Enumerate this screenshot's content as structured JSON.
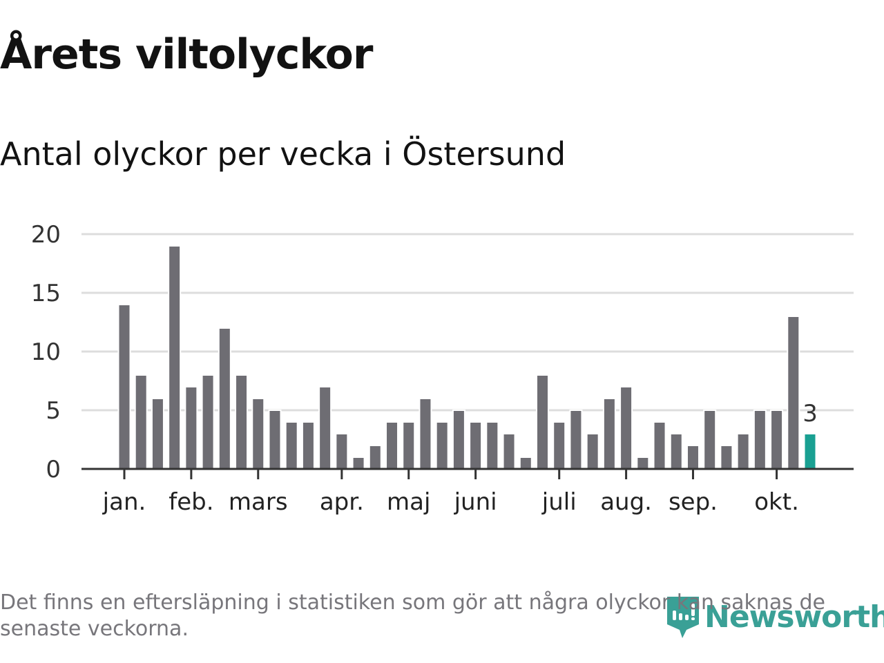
{
  "chart_data": {
    "type": "bar",
    "title": "Årets viltolyckor",
    "subtitle": "Antal olyckor per vecka i Östersund",
    "xlabel": "",
    "ylabel": "",
    "ylim": [
      0,
      20
    ],
    "yticks": [
      0,
      5,
      10,
      15,
      20
    ],
    "grid": true,
    "values": [
      14,
      8,
      6,
      19,
      7,
      8,
      12,
      8,
      6,
      5,
      4,
      4,
      7,
      3,
      1,
      2,
      4,
      4,
      6,
      4,
      5,
      4,
      4,
      3,
      1,
      8,
      4,
      5,
      3,
      6,
      7,
      1,
      4,
      3,
      2,
      5,
      2,
      3,
      5,
      5,
      13,
      3
    ],
    "highlight_index": 41,
    "highlight_label": "3",
    "months": [
      {
        "label": "jan.",
        "week_index": 0
      },
      {
        "label": "feb.",
        "week_index": 4
      },
      {
        "label": "mars",
        "week_index": 8
      },
      {
        "label": "apr.",
        "week_index": 13
      },
      {
        "label": "maj",
        "week_index": 17
      },
      {
        "label": "juni",
        "week_index": 21
      },
      {
        "label": "juli",
        "week_index": 26
      },
      {
        "label": "aug.",
        "week_index": 30
      },
      {
        "label": "sep.",
        "week_index": 34
      },
      {
        "label": "okt.",
        "week_index": 39
      }
    ],
    "colors": {
      "bar": "#6e6d73",
      "highlight": "#19a092",
      "grid": "#dddddd",
      "axis": "#333333"
    }
  },
  "footnote": "Det finns en eftersläpning i statistiken som gör att några olyckor kan saknas de senaste veckorna.",
  "logo": {
    "text": "Newsworthy"
  }
}
